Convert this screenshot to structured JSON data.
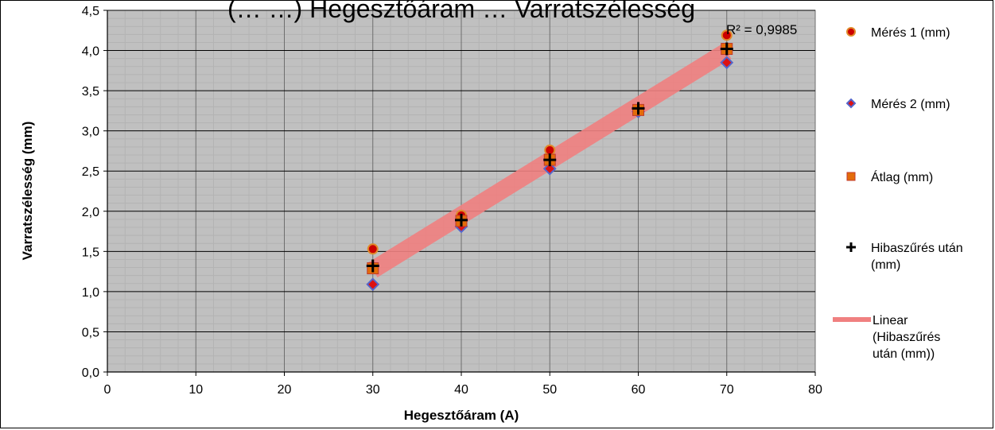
{
  "chart_data": {
    "type": "scatter",
    "title": "(… …) Hegesztőáram … Varratszélesség",
    "xlabel": "Hegesztőáram (A)",
    "ylabel": "Varratszélesség (mm)",
    "xlim": [
      0,
      80
    ],
    "ylim": [
      0,
      4.5
    ],
    "x_ticks": [
      "0",
      "10",
      "20",
      "30",
      "40",
      "50",
      "60",
      "70",
      "80"
    ],
    "y_ticks": [
      "0,0",
      "0,5",
      "1,0",
      "1,5",
      "2,0",
      "2,5",
      "3,0",
      "3,5",
      "4,0",
      "4,5"
    ],
    "grid": true,
    "legend_position": "right",
    "background_color": "#c0c0c0",
    "series": [
      {
        "name": "Mérés 1 (mm)",
        "marker": "circle",
        "color": "#cc0000",
        "edge_color": "#e08a2a",
        "x": [
          30,
          40,
          50,
          70
        ],
        "y": [
          1.53,
          1.95,
          2.76,
          4.19
        ]
      },
      {
        "name": "Mérés 2 (mm)",
        "marker": "diamond",
        "color": "#dd1111",
        "edge_color": "#5566cc",
        "x": [
          30,
          40,
          50,
          60,
          70
        ],
        "y": [
          1.09,
          1.81,
          2.53,
          3.24,
          3.85
        ]
      },
      {
        "name": "Átlag (mm)",
        "marker": "square",
        "color": "#e36c0a",
        "edge_color": "#c0392b",
        "x": [
          30,
          40,
          50,
          60,
          70
        ],
        "y": [
          1.29,
          1.88,
          2.64,
          3.26,
          4.02
        ]
      },
      {
        "name": "Hibaszűrés után (mm)",
        "marker": "plus",
        "color": "#000000",
        "x": [
          30,
          40,
          50,
          60,
          70
        ],
        "y": [
          1.32,
          1.89,
          2.64,
          3.28,
          4.02
        ]
      }
    ],
    "trendline": {
      "name": "Linear (Hibaszűrés után (mm))",
      "color": "#f08080",
      "x": [
        30,
        70
      ],
      "y": [
        1.27,
        3.99
      ],
      "r_squared_label": "R² = 0,9985"
    }
  }
}
